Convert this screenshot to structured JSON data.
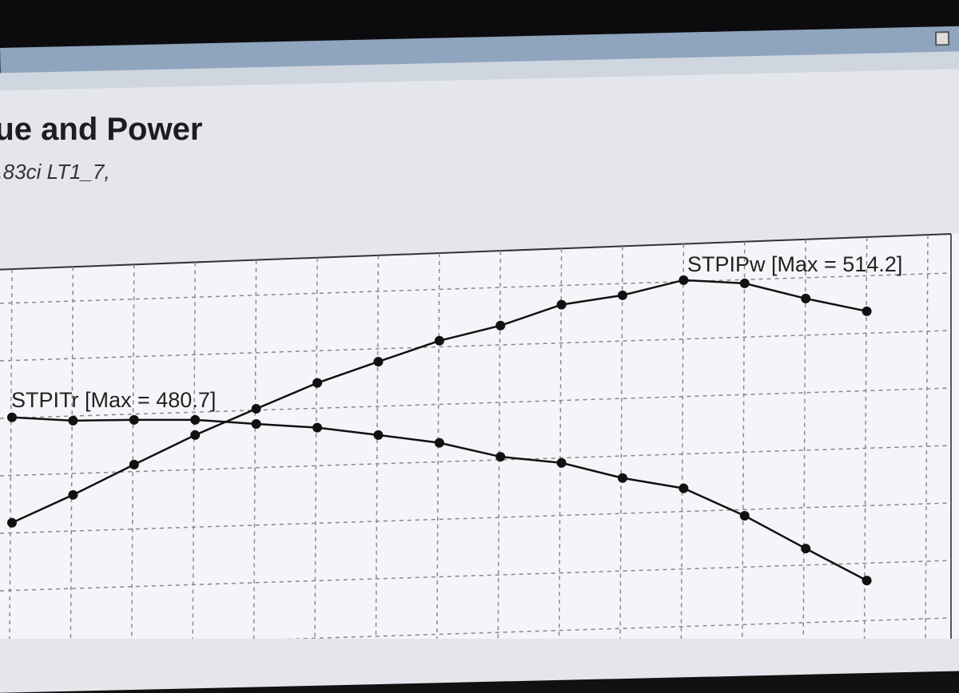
{
  "window": {
    "accent": "#8fa4bd"
  },
  "chart_data": {
    "type": "line",
    "title": "...ue and Power",
    "subtitle": "...83ci LT1_7,",
    "grid": true,
    "ylim": [
      426.7,
      524.1
    ],
    "series": [
      {
        "name": "STPIPw",
        "label": "STPIPw [Max = 514.2]",
        "values": [
          455.0,
          461.8,
          469.2,
          476.4,
          482.8,
          489.1,
          494.3,
          499.4,
          503.1,
          508.2,
          510.5,
          514.2,
          513.4,
          509.7,
          506.6
        ]
      },
      {
        "name": "STPITr",
        "label": "STPITr [Max = 480.7]",
        "values": [
          480.7,
          479.9,
          480.1,
          480.1,
          479.1,
          478.2,
          476.4,
          474.5,
          471.1,
          469.6,
          465.9,
          463.4,
          456.7,
          448.7,
          440.9
        ]
      }
    ],
    "line_color": "#111111"
  }
}
